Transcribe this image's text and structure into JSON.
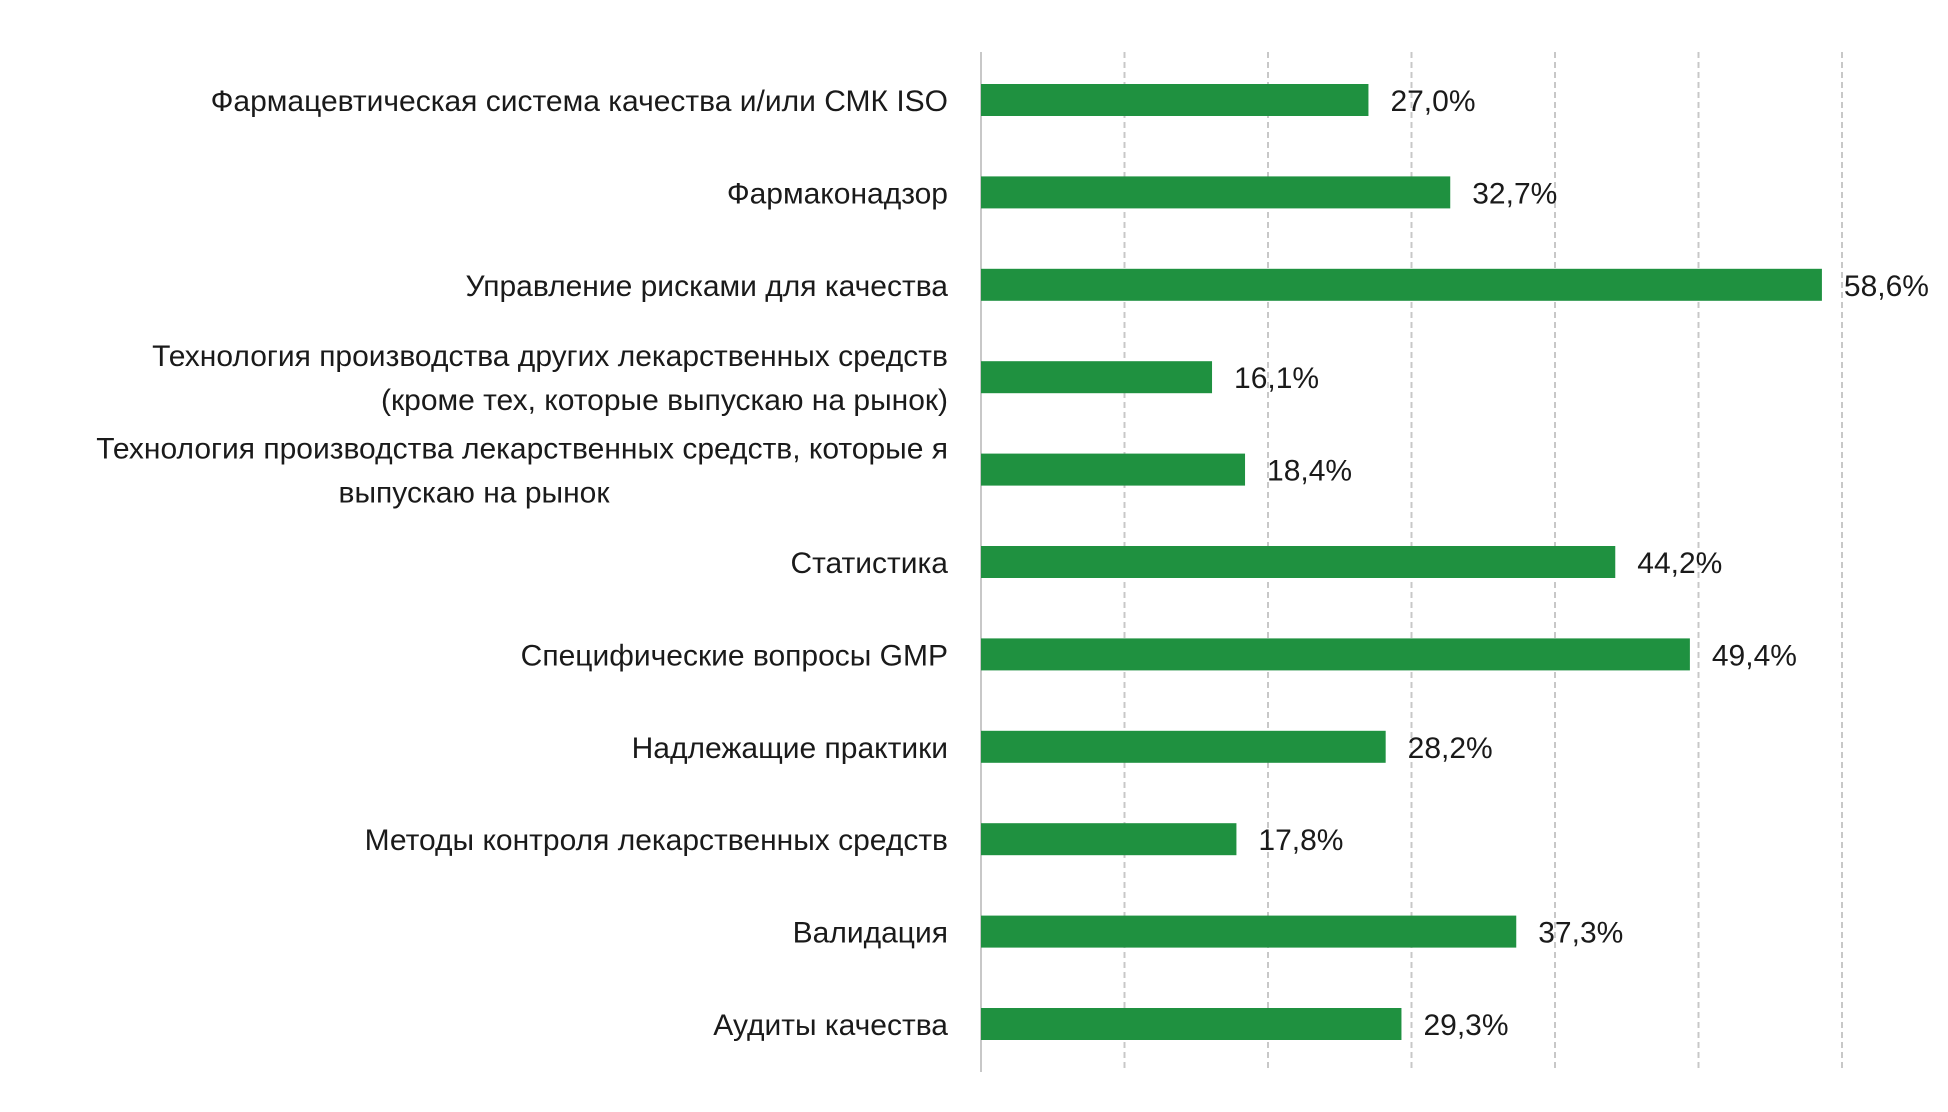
{
  "chart_data": {
    "type": "bar",
    "orientation": "horizontal",
    "title": "",
    "xlabel": "",
    "ylabel": "",
    "xlim": [
      0,
      60
    ],
    "grid": "vertical dashed",
    "bar_color": "#1f9140",
    "grid_color": "#c8c8c8",
    "categories": [
      [
        "Фармацевтическая система качества и/или СМК ISO"
      ],
      [
        "Фармаконадзор"
      ],
      [
        "Управление рисками для качества"
      ],
      [
        "Технология производства других лекарственных средств",
        "(кроме тех, которые выпускаю на рынок)"
      ],
      [
        "Технология производства лекарственных средств, которые я",
        "выпускаю на рынок"
      ],
      [
        "Статистика"
      ],
      [
        "Специфические вопросы GMP"
      ],
      [
        "Надлежащие практики"
      ],
      [
        "Методы контроля лекарственных средств"
      ],
      [
        "Валидация"
      ],
      [
        "Аудиты качества"
      ]
    ],
    "values": [
      27.0,
      32.7,
      58.6,
      16.1,
      18.4,
      44.2,
      49.4,
      28.2,
      17.8,
      37.3,
      29.3
    ],
    "data_labels": [
      "27,0%",
      "32,7%",
      "58,6%",
      "16,1%",
      "18,4%",
      "44,2%",
      "49,4%",
      "28,2%",
      "17,8%",
      "37,3%",
      "29,3%"
    ]
  }
}
